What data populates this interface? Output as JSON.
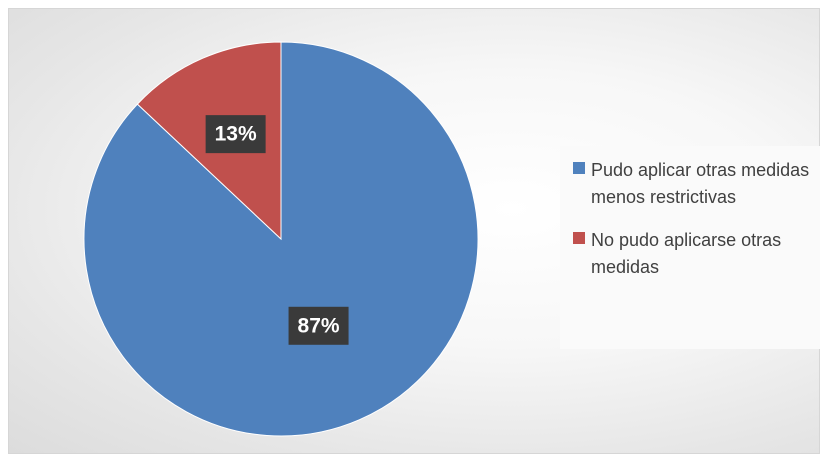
{
  "chart_data": {
    "type": "pie",
    "categories": [
      "Pudo aplicar otras medidas menos restrictivas",
      "No pudo aplicarse otras medidas"
    ],
    "values": [
      87,
      13
    ],
    "data_labels": [
      "87%",
      "13%"
    ],
    "colors": [
      "#4f81bd",
      "#c0504d"
    ],
    "start_angle": "12 o'clock",
    "direction": "clockwise",
    "legend_position": "right"
  },
  "legend": {
    "items": [
      {
        "label": "Pudo aplicar otras medidas menos restrictivas",
        "color": "#4f81bd"
      },
      {
        "label": "No pudo aplicarse otras medidas",
        "color": "#c0504d"
      }
    ]
  }
}
